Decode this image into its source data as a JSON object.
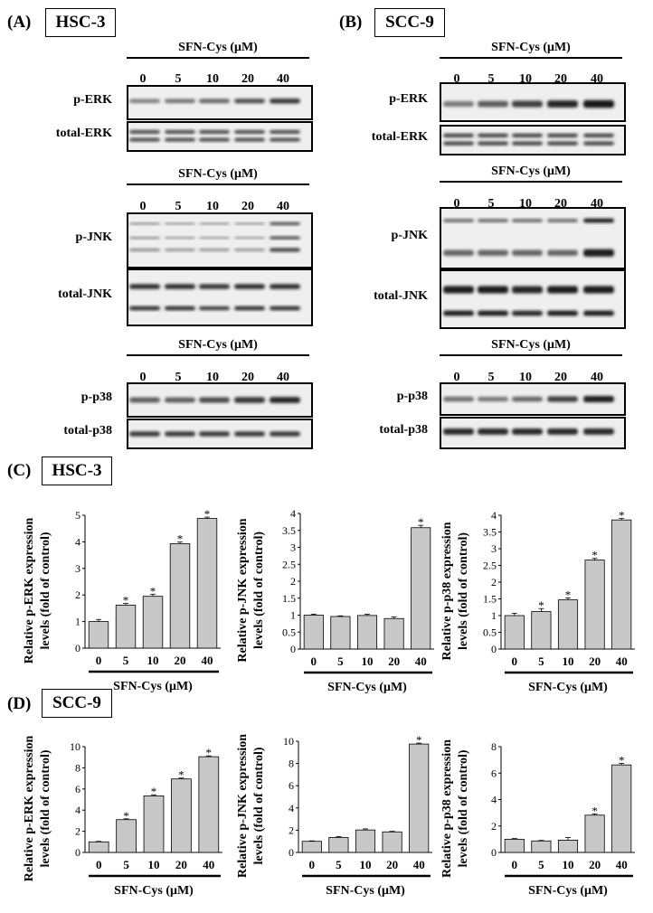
{
  "panels": {
    "A": {
      "letter": "(A)",
      "cell_line": "HSC-3"
    },
    "B": {
      "letter": "(B)",
      "cell_line": "SCC-9"
    },
    "C": {
      "letter": "(C)",
      "cell_line": "HSC-3"
    },
    "D": {
      "letter": "(D)",
      "cell_line": "SCC-9"
    }
  },
  "blot_header": "SFN-Cys  (μM)",
  "doses": [
    "0",
    "5",
    "10",
    "20",
    "40"
  ],
  "blot_labels": {
    "p_erk": "p-ERK",
    "total_erk": "total-ERK",
    "p_jnk": "p-JNK",
    "total_jnk": "total-JNK",
    "p_p38": "p-p38",
    "total_p38": "total-p38"
  },
  "blot_intensity": {
    "A": {
      "p_erk": [
        0.45,
        0.5,
        0.55,
        0.7,
        0.8
      ],
      "total_erk": [
        0.7,
        0.7,
        0.7,
        0.7,
        0.7
      ],
      "p_jnk": [
        0.35,
        0.3,
        0.3,
        0.3,
        0.75
      ],
      "total_jnk": [
        0.85,
        0.85,
        0.8,
        0.85,
        0.85
      ],
      "p_p38": [
        0.6,
        0.6,
        0.7,
        0.8,
        0.9
      ],
      "total_p38": [
        0.8,
        0.8,
        0.8,
        0.8,
        0.8
      ]
    },
    "B": {
      "p_erk": [
        0.45,
        0.6,
        0.75,
        0.9,
        1.0
      ],
      "total_erk": [
        0.75,
        0.75,
        0.75,
        0.75,
        0.75
      ],
      "p_jnk": [
        0.55,
        0.55,
        0.55,
        0.55,
        0.95
      ],
      "total_jnk": [
        0.95,
        0.95,
        0.9,
        0.95,
        0.95
      ],
      "p_p38": [
        0.5,
        0.45,
        0.55,
        0.75,
        0.95
      ],
      "total_p38": [
        0.9,
        0.9,
        0.9,
        0.9,
        0.9
      ]
    }
  },
  "significance_mark": "*",
  "chart_data": [
    {
      "type": "bar",
      "panel": "C",
      "categories": [
        "0",
        "5",
        "10",
        "20",
        "40"
      ],
      "values": [
        1.0,
        1.62,
        1.95,
        3.93,
        4.88
      ],
      "errors": [
        0.08,
        0.06,
        0.08,
        0.06,
        0.05
      ],
      "significant": [
        false,
        true,
        true,
        true,
        true
      ],
      "ylabel_lines": [
        "Relative p-ERK expression",
        "levels (fold of control)"
      ],
      "xlabel": "SFN-Cys (μM)",
      "ylim": [
        0,
        5
      ],
      "yticks": [
        0,
        1,
        2,
        3,
        4,
        5
      ],
      "grid": false
    },
    {
      "type": "bar",
      "panel": "C",
      "categories": [
        "0",
        "5",
        "10",
        "20",
        "40"
      ],
      "values": [
        1.0,
        0.96,
        0.99,
        0.9,
        3.58
      ],
      "errors": [
        0.03,
        0.02,
        0.04,
        0.05,
        0.07
      ],
      "significant": [
        false,
        false,
        false,
        false,
        true
      ],
      "ylabel_lines": [
        "Relative p-JNK expression",
        "levels (fold of control)"
      ],
      "xlabel": "SFN-Cys (μM)",
      "ylim": [
        0,
        4
      ],
      "yticks": [
        0,
        0.5,
        1,
        1.5,
        2,
        2.5,
        3,
        3.5,
        4
      ],
      "grid": false
    },
    {
      "type": "bar",
      "panel": "C",
      "categories": [
        "0",
        "5",
        "10",
        "20",
        "40"
      ],
      "values": [
        1.0,
        1.12,
        1.47,
        2.66,
        3.86
      ],
      "errors": [
        0.07,
        0.09,
        0.06,
        0.05,
        0.05
      ],
      "significant": [
        false,
        true,
        true,
        true,
        true
      ],
      "ylabel_lines": [
        "Relative p-p38 expression",
        "levels (fold of control)"
      ],
      "xlabel": "SFN-Cys (μM)",
      "ylim": [
        0,
        4
      ],
      "yticks": [
        0,
        0.5,
        1,
        1.5,
        2,
        2.5,
        3,
        3.5,
        4
      ],
      "grid": false
    },
    {
      "type": "bar",
      "panel": "D",
      "categories": [
        "0",
        "5",
        "10",
        "20",
        "40"
      ],
      "values": [
        1.0,
        3.1,
        5.35,
        6.95,
        9.05
      ],
      "errors": [
        0.05,
        0.08,
        0.1,
        0.08,
        0.08
      ],
      "significant": [
        false,
        true,
        true,
        true,
        true
      ],
      "ylabel_lines": [
        "Relative p-ERK expression",
        "levels (fold of control)"
      ],
      "xlabel": "SFN-Cys (μM)",
      "ylim": [
        0,
        10
      ],
      "yticks": [
        0,
        2,
        4,
        6,
        8,
        10
      ],
      "grid": false
    },
    {
      "type": "bar",
      "panel": "D",
      "categories": [
        "0",
        "5",
        "10",
        "20",
        "40"
      ],
      "values": [
        1.0,
        1.35,
        2.02,
        1.85,
        9.75
      ],
      "errors": [
        0.04,
        0.08,
        0.1,
        0.05,
        0.08
      ],
      "significant": [
        false,
        false,
        false,
        false,
        true
      ],
      "ylabel_lines": [
        "Relative p-JNK expression",
        "levels (fold of control)"
      ],
      "xlabel": "SFN-Cys (μM)",
      "ylim": [
        0,
        10
      ],
      "yticks": [
        0,
        2,
        4,
        6,
        8,
        10
      ],
      "grid": false
    },
    {
      "type": "bar",
      "panel": "D",
      "categories": [
        "0",
        "5",
        "10",
        "20",
        "40"
      ],
      "values": [
        1.0,
        0.87,
        0.93,
        2.82,
        6.62
      ],
      "errors": [
        0.05,
        0.04,
        0.2,
        0.1,
        0.12
      ],
      "significant": [
        false,
        false,
        false,
        true,
        true
      ],
      "ylabel_lines": [
        "Relative p-p38 expression",
        "levels (fold of control)"
      ],
      "xlabel": "SFN-Cys (μM)",
      "ylim": [
        0,
        8
      ],
      "yticks": [
        0,
        2,
        4,
        6,
        8
      ],
      "grid": false
    }
  ]
}
